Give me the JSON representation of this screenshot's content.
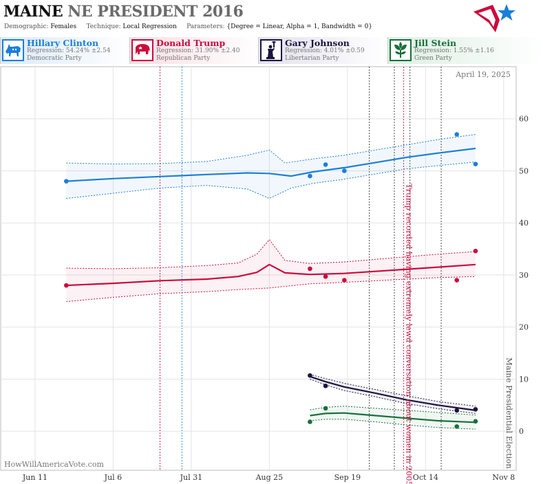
{
  "header": {
    "state": "MAINE",
    "race": "NE PRESIDENT 2016",
    "demographic_label": "Demographic:",
    "demographic": "Females",
    "technique_label": "Technique:",
    "technique": "Local Regression",
    "parameters_label": "Parameters:",
    "parameters": "{Degree = Linear, Alpha = 1, Bandwidth = 0}"
  },
  "candidates": [
    {
      "name": "Hillary Clinton",
      "regression": "Regression: 54.24% ±2.54",
      "party": "Democratic Party",
      "color": "#1a7fd9",
      "icon": "donkey-icon"
    },
    {
      "name": "Donald Trump",
      "regression": "Regression: 31.90% ±2.40",
      "party": "Republican Party",
      "color": "#cc0a3c",
      "icon": "elephant-icon"
    },
    {
      "name": "Gary Johnson",
      "regression": "Regression: 4.01% ±0.59",
      "party": "Libertarian Party",
      "color": "#1b1440",
      "icon": "statue-of-liberty-icon"
    },
    {
      "name": "Jill Stein",
      "regression": "Regression: 1.55% ±1.16",
      "party": "Green Party",
      "color": "#17703a",
      "icon": "leaf-icon"
    }
  ],
  "footer": {
    "date": "April 19, 2025",
    "credit": "HowWillAmericaVote.com"
  },
  "chart_data": {
    "type": "scatter",
    "x_ticks": [
      "Jun 11",
      "Jul 6",
      "Jul 31",
      "Aug 25",
      "Sep 19",
      "Oct 14",
      "Nov 8"
    ],
    "x_range": [
      "2016-05-31",
      "2016-11-12"
    ],
    "y_ticks": [
      0,
      10,
      20,
      30,
      40,
      50,
      60
    ],
    "ylim": [
      -7.5,
      70
    ],
    "annotations": [
      {
        "text": "Trump recorded having extremely lewd conversation about women in 2005",
        "date": "2016-10-07",
        "color": "#cc0a3c"
      },
      {
        "text": "Maine Presidential Election",
        "date": "2016-11-08",
        "color": "#555555"
      }
    ],
    "event_lines": [
      {
        "date": "2016-07-21",
        "color": "#cc0a3c"
      },
      {
        "date": "2016-07-28",
        "color": "#1a7fd9"
      },
      {
        "date": "2016-09-26",
        "color": "#333333"
      },
      {
        "date": "2016-10-04",
        "color": "#333333"
      },
      {
        "date": "2016-10-07",
        "color": "#cc0a3c"
      },
      {
        "date": "2016-10-09",
        "color": "#333333"
      },
      {
        "date": "2016-10-19",
        "color": "#333333"
      }
    ],
    "series": [
      {
        "name": "Hillary Clinton",
        "color": "#1a7fd9",
        "points": [
          [
            "2016-06-21",
            48.0
          ],
          [
            "2016-09-07",
            49.0
          ],
          [
            "2016-09-12",
            51.2
          ],
          [
            "2016-09-18",
            50.0
          ],
          [
            "2016-10-24",
            57.0
          ],
          [
            "2016-10-30",
            51.3
          ]
        ],
        "trend": [
          [
            "2016-06-21",
            48.0
          ],
          [
            "2016-07-06",
            48.5
          ],
          [
            "2016-07-21",
            48.9
          ],
          [
            "2016-08-05",
            49.3
          ],
          [
            "2016-08-18",
            49.6
          ],
          [
            "2016-08-25",
            49.5
          ],
          [
            "2016-09-01",
            49.0
          ],
          [
            "2016-09-08",
            49.8
          ],
          [
            "2016-09-18",
            50.6
          ],
          [
            "2016-09-28",
            51.6
          ],
          [
            "2016-10-08",
            52.6
          ],
          [
            "2016-10-18",
            53.4
          ],
          [
            "2016-10-30",
            54.3
          ]
        ],
        "upper": [
          [
            "2016-06-21",
            51.5
          ],
          [
            "2016-07-06",
            51.3
          ],
          [
            "2016-07-21",
            51.4
          ],
          [
            "2016-08-05",
            51.8
          ],
          [
            "2016-08-18",
            53.0
          ],
          [
            "2016-08-25",
            54.0
          ],
          [
            "2016-08-30",
            51.5
          ],
          [
            "2016-09-08",
            52.3
          ],
          [
            "2016-09-18",
            53.0
          ],
          [
            "2016-09-28",
            54.0
          ],
          [
            "2016-10-08",
            55.0
          ],
          [
            "2016-10-18",
            56.0
          ],
          [
            "2016-10-30",
            57.0
          ]
        ],
        "lower": [
          [
            "2016-06-21",
            44.7
          ],
          [
            "2016-07-06",
            45.7
          ],
          [
            "2016-07-21",
            46.7
          ],
          [
            "2016-08-05",
            47.2
          ],
          [
            "2016-08-18",
            46.5
          ],
          [
            "2016-08-25",
            44.7
          ],
          [
            "2016-09-01",
            46.7
          ],
          [
            "2016-09-08",
            47.6
          ],
          [
            "2016-09-18",
            48.4
          ],
          [
            "2016-09-28",
            49.4
          ],
          [
            "2016-10-08",
            50.4
          ],
          [
            "2016-10-18",
            51.0
          ],
          [
            "2016-10-30",
            51.7
          ]
        ]
      },
      {
        "name": "Donald Trump",
        "color": "#cc0a3c",
        "points": [
          [
            "2016-06-21",
            28.0
          ],
          [
            "2016-09-07",
            31.2
          ],
          [
            "2016-09-12",
            29.7
          ],
          [
            "2016-09-18",
            29.0
          ],
          [
            "2016-10-24",
            29.0
          ],
          [
            "2016-10-30",
            34.6
          ]
        ],
        "trend": [
          [
            "2016-06-21",
            28.0
          ],
          [
            "2016-07-06",
            28.4
          ],
          [
            "2016-07-21",
            28.9
          ],
          [
            "2016-08-05",
            29.2
          ],
          [
            "2016-08-15",
            29.7
          ],
          [
            "2016-08-21",
            30.5
          ],
          [
            "2016-08-25",
            32.0
          ],
          [
            "2016-08-30",
            30.4
          ],
          [
            "2016-09-07",
            30.1
          ],
          [
            "2016-09-18",
            30.3
          ],
          [
            "2016-09-28",
            30.7
          ],
          [
            "2016-10-08",
            31.1
          ],
          [
            "2016-10-18",
            31.5
          ],
          [
            "2016-10-30",
            32.0
          ]
        ],
        "upper": [
          [
            "2016-06-21",
            31.3
          ],
          [
            "2016-07-06",
            31.2
          ],
          [
            "2016-07-21",
            31.4
          ],
          [
            "2016-08-05",
            31.8
          ],
          [
            "2016-08-15",
            32.3
          ],
          [
            "2016-08-21",
            34.0
          ],
          [
            "2016-08-25",
            36.8
          ],
          [
            "2016-08-30",
            32.8
          ],
          [
            "2016-09-07",
            32.2
          ],
          [
            "2016-09-18",
            32.5
          ],
          [
            "2016-09-28",
            33.0
          ],
          [
            "2016-10-08",
            33.5
          ],
          [
            "2016-10-18",
            34.0
          ],
          [
            "2016-10-30",
            34.5
          ]
        ],
        "lower": [
          [
            "2016-06-21",
            24.9
          ],
          [
            "2016-07-06",
            25.7
          ],
          [
            "2016-07-21",
            26.4
          ],
          [
            "2016-08-05",
            26.8
          ],
          [
            "2016-08-15",
            27.2
          ],
          [
            "2016-08-25",
            27.5
          ],
          [
            "2016-09-07",
            28.3
          ],
          [
            "2016-09-18",
            28.6
          ],
          [
            "2016-09-28",
            28.9
          ],
          [
            "2016-10-08",
            29.2
          ],
          [
            "2016-10-18",
            29.5
          ],
          [
            "2016-10-30",
            29.7
          ]
        ]
      },
      {
        "name": "Gary Johnson",
        "color": "#1b1440",
        "points": [
          [
            "2016-09-07",
            10.7
          ],
          [
            "2016-09-12",
            8.7
          ],
          [
            "2016-10-24",
            4.0
          ],
          [
            "2016-10-30",
            4.2
          ]
        ],
        "trend": [
          [
            "2016-09-07",
            10.5
          ],
          [
            "2016-09-12",
            9.5
          ],
          [
            "2016-09-18",
            8.5
          ],
          [
            "2016-09-28",
            7.3
          ],
          [
            "2016-10-08",
            6.0
          ],
          [
            "2016-10-18",
            5.0
          ],
          [
            "2016-10-30",
            4.0
          ]
        ],
        "upper": [
          [
            "2016-09-07",
            10.9
          ],
          [
            "2016-09-12",
            10.1
          ],
          [
            "2016-09-18",
            9.2
          ],
          [
            "2016-09-28",
            8.0
          ],
          [
            "2016-10-08",
            6.8
          ],
          [
            "2016-10-18",
            5.7
          ],
          [
            "2016-10-30",
            4.8
          ]
        ],
        "lower": [
          [
            "2016-09-07",
            10.0
          ],
          [
            "2016-09-12",
            8.9
          ],
          [
            "2016-09-18",
            7.8
          ],
          [
            "2016-09-28",
            6.6
          ],
          [
            "2016-10-08",
            5.3
          ],
          [
            "2016-10-18",
            4.3
          ],
          [
            "2016-10-30",
            3.4
          ]
        ]
      },
      {
        "name": "Jill Stein",
        "color": "#17703a",
        "points": [
          [
            "2016-09-07",
            1.8
          ],
          [
            "2016-09-12",
            4.4
          ],
          [
            "2016-10-24",
            0.9
          ],
          [
            "2016-10-30",
            1.9
          ]
        ],
        "trend": [
          [
            "2016-09-07",
            3.0
          ],
          [
            "2016-09-12",
            3.4
          ],
          [
            "2016-09-18",
            3.5
          ],
          [
            "2016-09-28",
            3.0
          ],
          [
            "2016-10-08",
            2.5
          ],
          [
            "2016-10-18",
            2.0
          ],
          [
            "2016-10-30",
            1.7
          ]
        ],
        "upper": [
          [
            "2016-09-07",
            4.1
          ],
          [
            "2016-09-12",
            4.6
          ],
          [
            "2016-09-18",
            4.8
          ],
          [
            "2016-09-28",
            4.4
          ],
          [
            "2016-10-08",
            4.0
          ],
          [
            "2016-10-18",
            3.6
          ],
          [
            "2016-10-30",
            3.1
          ]
        ],
        "lower": [
          [
            "2016-09-07",
            2.0
          ],
          [
            "2016-09-12",
            2.3
          ],
          [
            "2016-09-18",
            2.3
          ],
          [
            "2016-09-28",
            1.8
          ],
          [
            "2016-10-08",
            1.2
          ],
          [
            "2016-10-18",
            0.7
          ],
          [
            "2016-10-30",
            0.4
          ]
        ]
      }
    ]
  }
}
